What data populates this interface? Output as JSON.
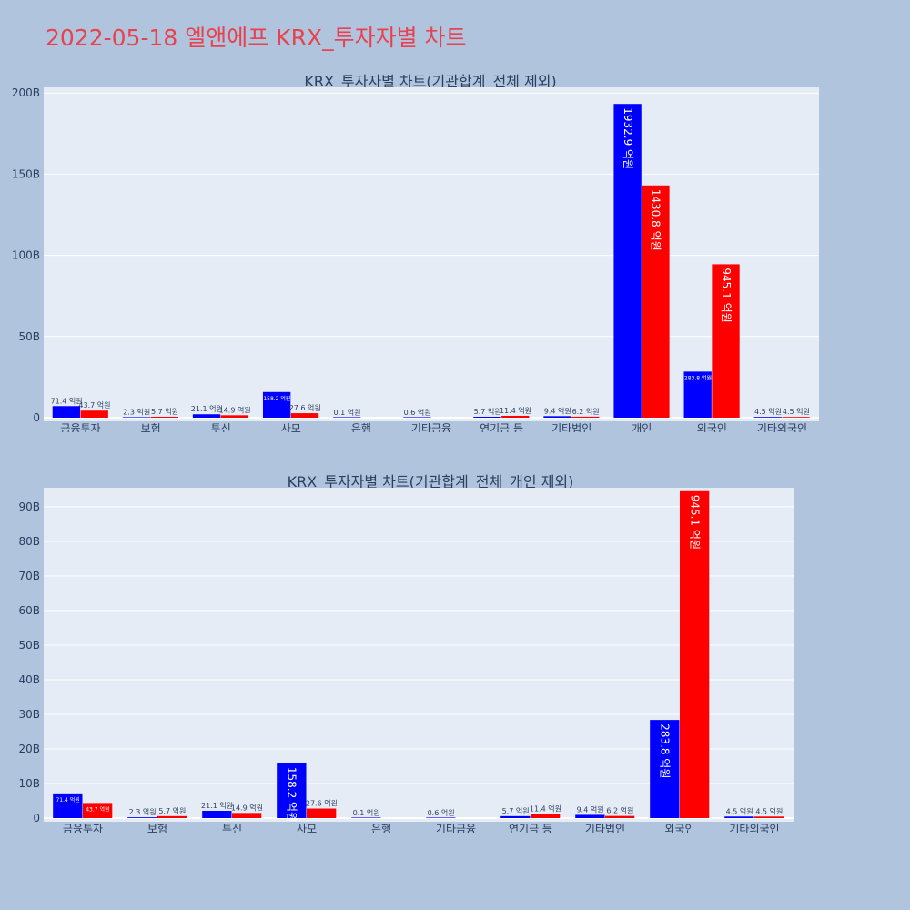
{
  "page": {
    "title": "2022-05-18 엘앤에프 KRX_투자자별 차트"
  },
  "colors": {
    "buy": "#0000ff",
    "sell": "#ff0000",
    "plot_bg": "#e5ecf6",
    "page_bg": "#b0c4de",
    "title": "#e8424f"
  },
  "chart_data": [
    {
      "type": "bar",
      "title": "KRX_투자자별 차트(기관합계_전체 제외)",
      "categories": [
        "금융투자",
        "보험",
        "투신",
        "사모",
        "은행",
        "기타금융",
        "연기금 등",
        "기타법인",
        "개인",
        "외국인",
        "기타외국인"
      ],
      "series": [
        {
          "color": "#0000ff",
          "values": [
            7.14,
            0.23,
            2.11,
            15.82,
            0.01,
            0.06,
            0.57,
            0.94,
            193.29,
            28.38,
            0.45
          ],
          "labels": [
            "71.4 억원",
            "2.3 억원",
            "21.1 억원",
            "158.2 억원",
            "0.1 억원",
            "0.6 억원",
            "5.7 억원",
            "9.4 억원",
            "1932.9 억원",
            "283.8 억원",
            "4.5 억원"
          ]
        },
        {
          "color": "#ff0000",
          "values": [
            4.37,
            0.57,
            1.49,
            2.76,
            null,
            null,
            1.14,
            0.62,
            143.08,
            94.51,
            0.45
          ],
          "labels": [
            "43.7 억원",
            "5.7 억원",
            "14.9 억원",
            "27.6 억원",
            "",
            "",
            "11.4 억원",
            "6.2 억원",
            "1430.8 억원",
            "945.1 억원",
            "4.5 억원"
          ]
        }
      ],
      "y_unit": "B",
      "yticks": [
        0,
        50,
        100,
        150,
        200
      ],
      "ylim": [
        0,
        203.5
      ],
      "grid": true,
      "legend": "none"
    },
    {
      "type": "bar",
      "title": "KRX_투자자별 차트(기관합계_전체_개인 제외)",
      "categories": [
        "금융투자",
        "보험",
        "투신",
        "사모",
        "은행",
        "기타금융",
        "연기금 등",
        "기타법인",
        "외국인",
        "기타외국인"
      ],
      "series": [
        {
          "color": "#0000ff",
          "values": [
            7.14,
            0.23,
            2.11,
            15.82,
            0.01,
            0.06,
            0.57,
            0.94,
            28.38,
            0.45
          ],
          "labels": [
            "71.4 억원",
            "2.3 억원",
            "21.1 억원",
            "158.2 억원",
            "0.1 억원",
            "0.6 억원",
            "5.7 억원",
            "9.4 억원",
            "283.8 억원",
            "4.5 억원"
          ]
        },
        {
          "color": "#ff0000",
          "values": [
            4.37,
            0.57,
            1.49,
            2.76,
            null,
            null,
            1.14,
            0.62,
            94.51,
            0.45
          ],
          "labels": [
            "43.7 억원",
            "5.7 억원",
            "14.9 억원",
            "27.6 억원",
            "",
            "",
            "11.4 억원",
            "6.2 억원",
            "945.1 억원",
            "4.5 억원"
          ]
        }
      ],
      "y_unit": "B",
      "yticks": [
        0,
        10,
        20,
        30,
        40,
        50,
        60,
        70,
        80,
        90
      ],
      "ylim": [
        0,
        95.5
      ],
      "grid": true,
      "legend": "none"
    }
  ]
}
